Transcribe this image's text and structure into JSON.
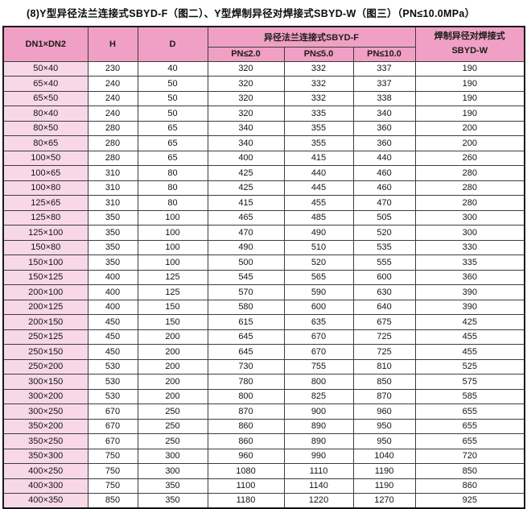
{
  "title": "(8)Y型异径法兰连接式SBYD-F（图二）、Y型焊制异径对焊接式SBYD-W（图三）（PN≤10.0MPa）",
  "colors": {
    "header_pink": "#f0a0c4",
    "row_label_pink": "#f8d8e6",
    "border": "#3d3d3d",
    "outer_border": "#1a1a1a",
    "background": "#ffffff"
  },
  "table": {
    "header": {
      "dn": "DN1×DN2",
      "h": "H",
      "d": "D",
      "flange_group": "异径法兰连接式SBYD-F",
      "pn_sub": [
        "PN≤2.0",
        "PN≤5.0",
        "PN≤10.0"
      ],
      "weld_line1": "焊制异径对焊接式",
      "weld_line2": "SBYD-W"
    },
    "row_keys": [
      "dn",
      "h",
      "d",
      "pn20",
      "pn50",
      "pn100",
      "w"
    ],
    "rows": [
      {
        "dn": "50×40",
        "h": "230",
        "d": "40",
        "pn20": "320",
        "pn50": "332",
        "pn100": "337",
        "w": "190"
      },
      {
        "dn": "65×40",
        "h": "240",
        "d": "50",
        "pn20": "320",
        "pn50": "332",
        "pn100": "337",
        "w": "190"
      },
      {
        "dn": "65×50",
        "h": "240",
        "d": "50",
        "pn20": "320",
        "pn50": "332",
        "pn100": "338",
        "w": "190"
      },
      {
        "dn": "80×40",
        "h": "240",
        "d": "50",
        "pn20": "320",
        "pn50": "335",
        "pn100": "340",
        "w": "190"
      },
      {
        "dn": "80×50",
        "h": "280",
        "d": "65",
        "pn20": "340",
        "pn50": "355",
        "pn100": "360",
        "w": "200"
      },
      {
        "dn": "80×65",
        "h": "280",
        "d": "65",
        "pn20": "340",
        "pn50": "355",
        "pn100": "360",
        "w": "200"
      },
      {
        "dn": "100×50",
        "h": "280",
        "d": "65",
        "pn20": "400",
        "pn50": "415",
        "pn100": "440",
        "w": "260"
      },
      {
        "dn": "100×65",
        "h": "310",
        "d": "80",
        "pn20": "425",
        "pn50": "440",
        "pn100": "460",
        "w": "280"
      },
      {
        "dn": "100×80",
        "h": "310",
        "d": "80",
        "pn20": "425",
        "pn50": "445",
        "pn100": "460",
        "w": "280"
      },
      {
        "dn": "125×65",
        "h": "310",
        "d": "80",
        "pn20": "415",
        "pn50": "455",
        "pn100": "470",
        "w": "280"
      },
      {
        "dn": "125×80",
        "h": "350",
        "d": "100",
        "pn20": "465",
        "pn50": "485",
        "pn100": "505",
        "w": "300"
      },
      {
        "dn": "125×100",
        "h": "350",
        "d": "100",
        "pn20": "470",
        "pn50": "490",
        "pn100": "520",
        "w": "300"
      },
      {
        "dn": "150×80",
        "h": "350",
        "d": "100",
        "pn20": "490",
        "pn50": "510",
        "pn100": "535",
        "w": "330"
      },
      {
        "dn": "150×100",
        "h": "350",
        "d": "100",
        "pn20": "500",
        "pn50": "520",
        "pn100": "555",
        "w": "335"
      },
      {
        "dn": "150×125",
        "h": "400",
        "d": "125",
        "pn20": "545",
        "pn50": "565",
        "pn100": "600",
        "w": "360"
      },
      {
        "dn": "200×100",
        "h": "400",
        "d": "125",
        "pn20": "570",
        "pn50": "590",
        "pn100": "630",
        "w": "390"
      },
      {
        "dn": "200×125",
        "h": "400",
        "d": "150",
        "pn20": "580",
        "pn50": "600",
        "pn100": "640",
        "w": "390"
      },
      {
        "dn": "200×150",
        "h": "450",
        "d": "150",
        "pn20": "615",
        "pn50": "635",
        "pn100": "675",
        "w": "425"
      },
      {
        "dn": "250×125",
        "h": "450",
        "d": "200",
        "pn20": "645",
        "pn50": "670",
        "pn100": "725",
        "w": "455"
      },
      {
        "dn": "250×150",
        "h": "450",
        "d": "200",
        "pn20": "645",
        "pn50": "670",
        "pn100": "725",
        "w": "455"
      },
      {
        "dn": "250×200",
        "h": "530",
        "d": "200",
        "pn20": "730",
        "pn50": "755",
        "pn100": "810",
        "w": "525"
      },
      {
        "dn": "300×150",
        "h": "530",
        "d": "200",
        "pn20": "780",
        "pn50": "800",
        "pn100": "850",
        "w": "575"
      },
      {
        "dn": "300×200",
        "h": "530",
        "d": "200",
        "pn20": "800",
        "pn50": "825",
        "pn100": "870",
        "w": "585"
      },
      {
        "dn": "300×250",
        "h": "670",
        "d": "250",
        "pn20": "870",
        "pn50": "900",
        "pn100": "960",
        "w": "655"
      },
      {
        "dn": "350×200",
        "h": "670",
        "d": "250",
        "pn20": "860",
        "pn50": "890",
        "pn100": "950",
        "w": "655"
      },
      {
        "dn": "350×250",
        "h": "670",
        "d": "250",
        "pn20": "860",
        "pn50": "890",
        "pn100": "950",
        "w": "655"
      },
      {
        "dn": "350×300",
        "h": "750",
        "d": "300",
        "pn20": "960",
        "pn50": "990",
        "pn100": "1040",
        "w": "720"
      },
      {
        "dn": "400×250",
        "h": "750",
        "d": "300",
        "pn20": "1080",
        "pn50": "1110",
        "pn100": "1190",
        "w": "850"
      },
      {
        "dn": "400×300",
        "h": "750",
        "d": "350",
        "pn20": "1100",
        "pn50": "1140",
        "pn100": "1190",
        "w": "860"
      },
      {
        "dn": "400×350",
        "h": "850",
        "d": "350",
        "pn20": "1180",
        "pn50": "1220",
        "pn100": "1270",
        "w": "925"
      }
    ]
  }
}
